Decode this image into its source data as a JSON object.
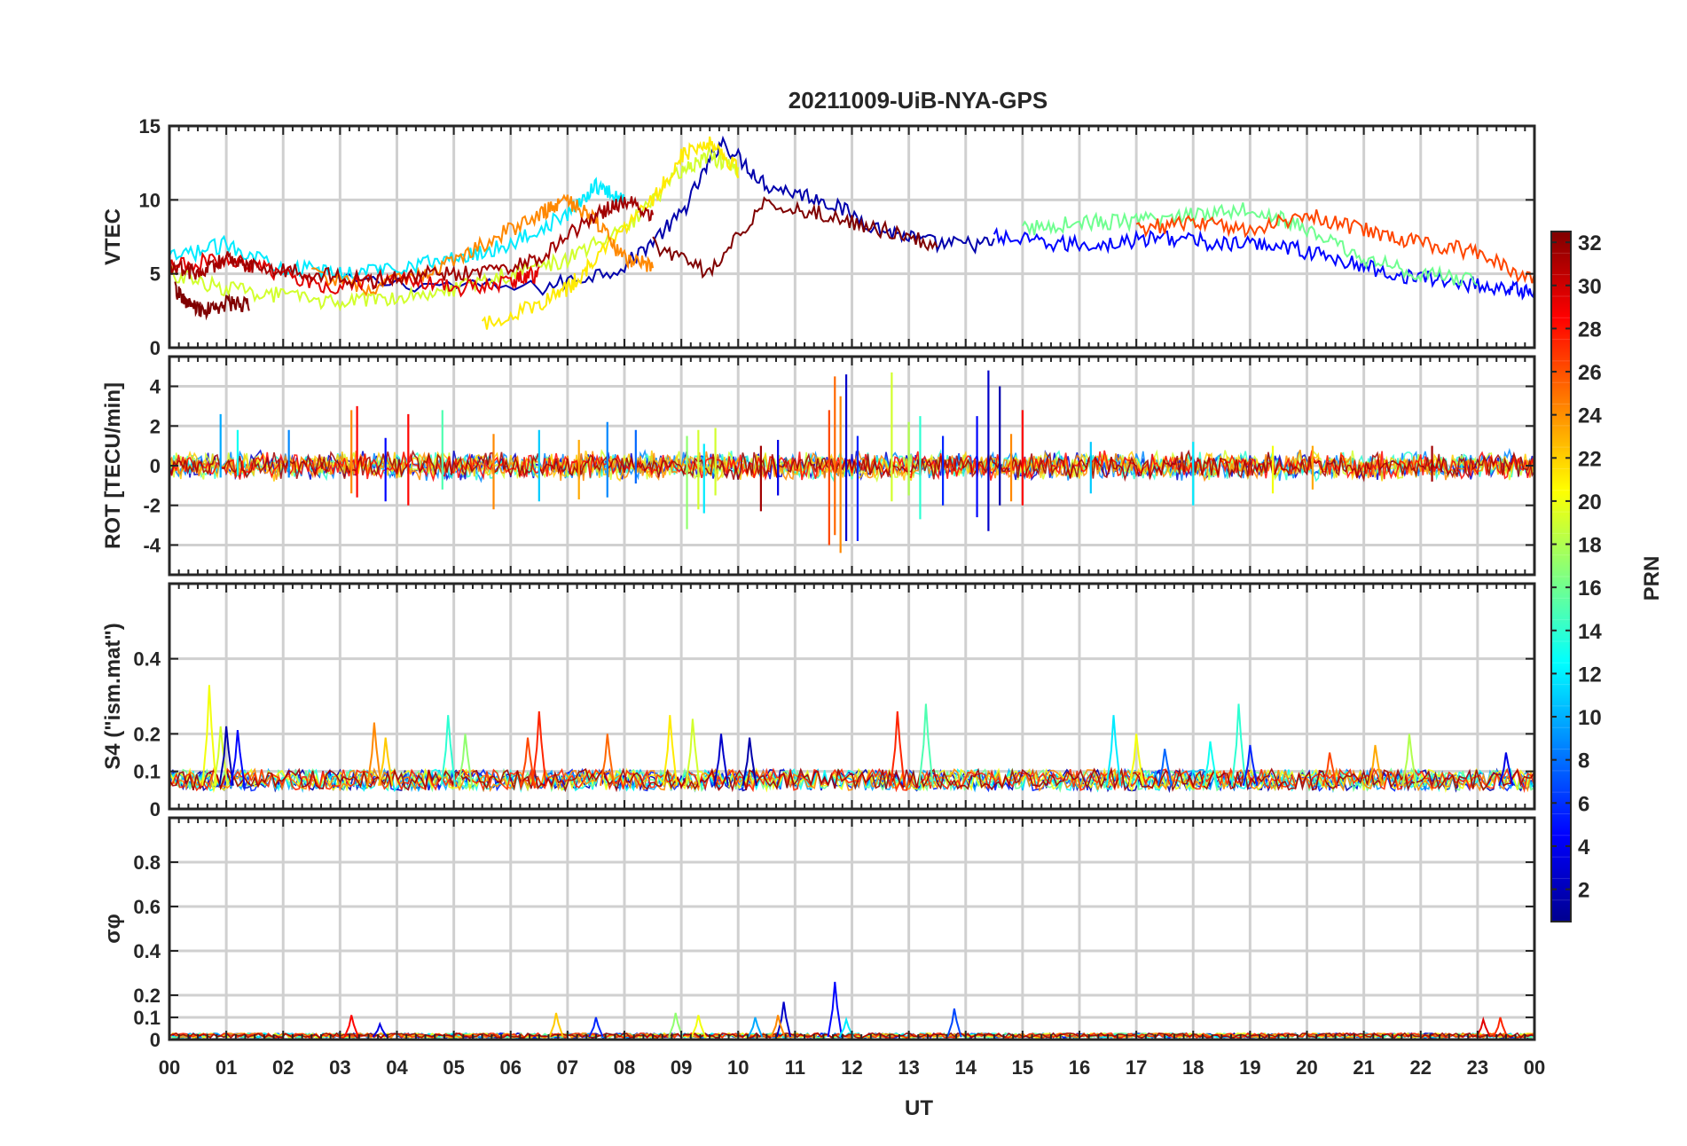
{
  "title": "20211009-UiB-NYA-GPS",
  "xlabel": "UT",
  "x_tick_labels": [
    "00",
    "01",
    "02",
    "03",
    "04",
    "05",
    "06",
    "07",
    "08",
    "09",
    "10",
    "11",
    "12",
    "13",
    "14",
    "15",
    "16",
    "17",
    "18",
    "19",
    "20",
    "21",
    "22",
    "23",
    "00"
  ],
  "colorbar": {
    "label": "PRN",
    "range": [
      1,
      32
    ],
    "tick_labels": [
      "2",
      "4",
      "6",
      "8",
      "10",
      "12",
      "14",
      "16",
      "18",
      "20",
      "22",
      "24",
      "26",
      "28",
      "30",
      "32"
    ],
    "colormap": "jet",
    "colors": [
      "#00008f",
      "#0000ff",
      "#0080ff",
      "#00ffff",
      "#80ff80",
      "#ffff00",
      "#ff8000",
      "#ff0000",
      "#800000"
    ]
  },
  "chart_data": [
    {
      "type": "line",
      "panel": "VTEC",
      "ylabel": "VTEC",
      "xlim": [
        0,
        24
      ],
      "ylim": [
        0,
        15
      ],
      "y_tick_labels": [
        "0",
        "5",
        "10",
        "15"
      ],
      "grid": true,
      "series": [
        {
          "prn": 2,
          "x": [
            3.0,
            6.5,
            8.0,
            9.0,
            9.7,
            10.5,
            11.5,
            12.5,
            13.5,
            14.5
          ],
          "values": [
            4.5,
            4.0,
            5.5,
            9.0,
            14.0,
            11.0,
            10.0,
            8.0,
            7.0,
            7.0
          ]
        },
        {
          "prn": 5,
          "x": [
            14.5,
            15.5,
            16.5,
            17.5,
            18.5,
            19.5,
            20.5,
            21.5,
            22.5,
            23.5,
            24.0
          ],
          "values": [
            7.5,
            7.0,
            7.0,
            7.5,
            7.0,
            7.0,
            6.0,
            5.0,
            4.5,
            4.0,
            3.8
          ]
        },
        {
          "prn": 12,
          "x": [
            0.0,
            1.0,
            2.0,
            3.0,
            4.0,
            5.0,
            6.0,
            7.0,
            7.5,
            8.0
          ],
          "values": [
            6.0,
            7.0,
            5.5,
            5.0,
            5.5,
            6.0,
            7.0,
            9.0,
            11.0,
            10.0
          ]
        },
        {
          "prn": 16,
          "x": [
            15.0,
            16.0,
            17.0,
            18.0,
            19.0,
            20.0,
            21.0,
            22.0,
            23.0
          ],
          "values": [
            8.0,
            8.5,
            8.5,
            9.0,
            9.5,
            8.0,
            6.0,
            5.0,
            4.5
          ]
        },
        {
          "prn": 19,
          "x": [
            0.0,
            1.0,
            2.0,
            3.0,
            4.0,
            5.0,
            6.0,
            7.0,
            8.0,
            9.0,
            9.5,
            10.0
          ],
          "values": [
            5.0,
            4.0,
            3.5,
            3.0,
            3.5,
            4.0,
            5.0,
            6.0,
            8.0,
            12.0,
            13.0,
            12.0
          ]
        },
        {
          "prn": 21,
          "x": [
            5.5,
            6.5,
            7.0,
            7.5,
            8.5,
            9.0,
            9.5,
            10.0
          ],
          "values": [
            1.5,
            3.0,
            4.0,
            6.0,
            10.0,
            13.0,
            14.0,
            12.0
          ]
        },
        {
          "prn": 24,
          "x": [
            2.5,
            3.5,
            4.5,
            5.5,
            6.5,
            7.0,
            7.5,
            8.0,
            8.5
          ],
          "values": [
            5.0,
            4.0,
            5.0,
            7.0,
            9.0,
            10.0,
            8.5,
            6.0,
            5.5
          ]
        },
        {
          "prn": 26,
          "x": [
            17.0,
            18.0,
            19.0,
            20.0,
            21.0,
            22.0,
            23.0,
            24.0
          ],
          "values": [
            8.0,
            8.5,
            8.0,
            9.0,
            8.0,
            7.0,
            6.5,
            4.5
          ]
        },
        {
          "prn": 29,
          "x": [
            0.0,
            1.0,
            2.0,
            3.0,
            4.0,
            5.0,
            6.0,
            6.5
          ],
          "values": [
            5.5,
            6.0,
            5.0,
            4.0,
            5.0,
            4.0,
            4.5,
            5.0
          ]
        },
        {
          "prn": 31,
          "x": [
            0.0,
            0.5,
            1.0,
            1.5,
            2.5,
            3.5,
            4.5,
            5.5,
            6.5,
            7.5,
            8.0,
            8.5
          ],
          "values": [
            5.5,
            5.0,
            6.0,
            5.5,
            5.0,
            4.5,
            5.0,
            5.0,
            6.0,
            9.0,
            10.0,
            9.0
          ]
        },
        {
          "prn": 32,
          "x": [
            0.1,
            0.3,
            0.6,
            1.0,
            1.4
          ],
          "values": [
            4.0,
            3.0,
            2.5,
            3.0,
            3.0
          ]
        },
        {
          "prn": 32,
          "x": [
            8.5,
            9.5,
            10.5,
            11.5,
            12.5,
            13.5
          ],
          "values": [
            7.0,
            5.0,
            10.0,
            9.0,
            8.0,
            7.0
          ]
        }
      ]
    },
    {
      "type": "line",
      "panel": "ROT",
      "ylabel": "ROT [TECU/min]",
      "xlim": [
        0,
        24
      ],
      "ylim": [
        -5.5,
        5.5
      ],
      "y_tick_labels": [
        "-4",
        "-2",
        "0",
        "2",
        "4"
      ],
      "y_ticks": [
        -4,
        -2,
        0,
        2,
        4
      ],
      "grid": true,
      "background_band": [
        -1.0,
        1.0
      ],
      "spikes": [
        {
          "x": 0.9,
          "min": -0.6,
          "max": 2.6,
          "prn": 10
        },
        {
          "x": 1.2,
          "min": -0.5,
          "max": 1.8,
          "prn": 13
        },
        {
          "x": 2.1,
          "min": -0.6,
          "max": 1.8,
          "prn": 9
        },
        {
          "x": 3.2,
          "min": -1.4,
          "max": 2.8,
          "prn": 24
        },
        {
          "x": 3.3,
          "min": -1.6,
          "max": 3.0,
          "prn": 28
        },
        {
          "x": 3.8,
          "min": -1.8,
          "max": 1.4,
          "prn": 5
        },
        {
          "x": 4.2,
          "min": -2.0,
          "max": 2.6,
          "prn": 28
        },
        {
          "x": 4.8,
          "min": -1.2,
          "max": 2.8,
          "prn": 15
        },
        {
          "x": 5.7,
          "min": -2.2,
          "max": 1.6,
          "prn": 24
        },
        {
          "x": 6.5,
          "min": -1.8,
          "max": 1.8,
          "prn": 11
        },
        {
          "x": 7.2,
          "min": -1.7,
          "max": 1.3,
          "prn": 23
        },
        {
          "x": 7.7,
          "min": -1.6,
          "max": 2.2,
          "prn": 9
        },
        {
          "x": 8.2,
          "min": -0.9,
          "max": 1.8,
          "prn": 8
        },
        {
          "x": 9.1,
          "min": -3.2,
          "max": 1.5,
          "prn": 17
        },
        {
          "x": 9.3,
          "min": -2.2,
          "max": 1.8,
          "prn": 19
        },
        {
          "x": 9.4,
          "min": -2.4,
          "max": 1.1,
          "prn": 12
        },
        {
          "x": 9.6,
          "min": -1.5,
          "max": 1.9,
          "prn": 19
        },
        {
          "x": 10.4,
          "min": -2.3,
          "max": 1.0,
          "prn": 31
        },
        {
          "x": 10.7,
          "min": -1.5,
          "max": 1.3,
          "prn": 4
        },
        {
          "x": 11.6,
          "min": -4.0,
          "max": 2.8,
          "prn": 26
        },
        {
          "x": 11.7,
          "min": -3.5,
          "max": 4.5,
          "prn": 25
        },
        {
          "x": 11.8,
          "min": -4.4,
          "max": 3.5,
          "prn": 24
        },
        {
          "x": 11.9,
          "min": -3.8,
          "max": 4.6,
          "prn": 3
        },
        {
          "x": 12.1,
          "min": -3.8,
          "max": 1.5,
          "prn": 6
        },
        {
          "x": 12.7,
          "min": -1.8,
          "max": 4.7,
          "prn": 19
        },
        {
          "x": 13.0,
          "min": -1.5,
          "max": 2.2,
          "prn": 18
        },
        {
          "x": 13.2,
          "min": -2.7,
          "max": 2.5,
          "prn": 14
        },
        {
          "x": 13.6,
          "min": -2.0,
          "max": 1.5,
          "prn": 6
        },
        {
          "x": 14.2,
          "min": -2.6,
          "max": 2.5,
          "prn": 5
        },
        {
          "x": 14.4,
          "min": -3.3,
          "max": 4.8,
          "prn": 3
        },
        {
          "x": 14.6,
          "min": -2.0,
          "max": 4.0,
          "prn": 2
        },
        {
          "x": 14.8,
          "min": -1.8,
          "max": 1.6,
          "prn": 24
        },
        {
          "x": 15.0,
          "min": -2.0,
          "max": 2.8,
          "prn": 28
        },
        {
          "x": 16.2,
          "min": -1.4,
          "max": 1.2,
          "prn": 11
        },
        {
          "x": 18.0,
          "min": -2.0,
          "max": 1.2,
          "prn": 12
        },
        {
          "x": 19.4,
          "min": -1.4,
          "max": 1.0,
          "prn": 20
        },
        {
          "x": 20.1,
          "min": -1.2,
          "max": 1.0,
          "prn": 23
        },
        {
          "x": 22.2,
          "min": -0.8,
          "max": 1.0,
          "prn": 31
        }
      ]
    },
    {
      "type": "line",
      "panel": "S4",
      "ylabel": "S4 (\"ism.mat\")",
      "xlim": [
        0,
        24
      ],
      "ylim": [
        0,
        0.6
      ],
      "y_tick_labels": [
        "0",
        "0.1",
        "0.2",
        "0.4"
      ],
      "y_ticks": [
        0,
        0.1,
        0.2,
        0.4
      ],
      "grid": true,
      "baseline": [
        0.03,
        0.11
      ],
      "spikes": [
        {
          "x": 0.7,
          "value": 0.33,
          "prn": 20
        },
        {
          "x": 0.9,
          "value": 0.22,
          "prn": 19
        },
        {
          "x": 1.0,
          "value": 0.22,
          "prn": 2
        },
        {
          "x": 1.2,
          "value": 0.21,
          "prn": 5
        },
        {
          "x": 3.6,
          "value": 0.23,
          "prn": 24
        },
        {
          "x": 3.8,
          "value": 0.19,
          "prn": 22
        },
        {
          "x": 4.9,
          "value": 0.25,
          "prn": 14
        },
        {
          "x": 5.2,
          "value": 0.2,
          "prn": 17
        },
        {
          "x": 6.5,
          "value": 0.26,
          "prn": 27
        },
        {
          "x": 6.3,
          "value": 0.19,
          "prn": 26
        },
        {
          "x": 7.7,
          "value": 0.2,
          "prn": 25
        },
        {
          "x": 8.8,
          "value": 0.25,
          "prn": 21
        },
        {
          "x": 9.2,
          "value": 0.24,
          "prn": 19
        },
        {
          "x": 9.7,
          "value": 0.2,
          "prn": 3
        },
        {
          "x": 10.2,
          "value": 0.19,
          "prn": 2
        },
        {
          "x": 12.8,
          "value": 0.26,
          "prn": 27
        },
        {
          "x": 13.3,
          "value": 0.28,
          "prn": 15
        },
        {
          "x": 16.6,
          "value": 0.25,
          "prn": 12
        },
        {
          "x": 17.0,
          "value": 0.2,
          "prn": 20
        },
        {
          "x": 17.5,
          "value": 0.16,
          "prn": 8
        },
        {
          "x": 18.3,
          "value": 0.18,
          "prn": 13
        },
        {
          "x": 18.8,
          "value": 0.28,
          "prn": 14
        },
        {
          "x": 19.0,
          "value": 0.17,
          "prn": 6
        },
        {
          "x": 20.4,
          "value": 0.15,
          "prn": 26
        },
        {
          "x": 21.2,
          "value": 0.17,
          "prn": 23
        },
        {
          "x": 21.8,
          "value": 0.2,
          "prn": 18
        },
        {
          "x": 23.5,
          "value": 0.15,
          "prn": 4
        }
      ]
    },
    {
      "type": "line",
      "panel": "sigma_phi",
      "ylabel": "σφ",
      "xlim": [
        0,
        24
      ],
      "ylim": [
        0,
        1.0
      ],
      "y_tick_labels": [
        "0",
        "0.1",
        "0.2",
        "0.4",
        "0.6",
        "0.8"
      ],
      "y_ticks": [
        0,
        0.1,
        0.2,
        0.4,
        0.6,
        0.8
      ],
      "grid": true,
      "baseline": [
        0.0,
        0.03
      ],
      "spikes": [
        {
          "x": 3.2,
          "value": 0.11,
          "prn": 28
        },
        {
          "x": 3.7,
          "value": 0.07,
          "prn": 4
        },
        {
          "x": 6.8,
          "value": 0.12,
          "prn": 22
        },
        {
          "x": 7.5,
          "value": 0.1,
          "prn": 6
        },
        {
          "x": 8.9,
          "value": 0.12,
          "prn": 17
        },
        {
          "x": 9.3,
          "value": 0.11,
          "prn": 20
        },
        {
          "x": 10.3,
          "value": 0.1,
          "prn": 10
        },
        {
          "x": 10.8,
          "value": 0.17,
          "prn": 3
        },
        {
          "x": 10.7,
          "value": 0.11,
          "prn": 24
        },
        {
          "x": 11.7,
          "value": 0.26,
          "prn": 5
        },
        {
          "x": 11.9,
          "value": 0.09,
          "prn": 12
        },
        {
          "x": 13.8,
          "value": 0.14,
          "prn": 7
        },
        {
          "x": 23.1,
          "value": 0.09,
          "prn": 29
        },
        {
          "x": 23.4,
          "value": 0.1,
          "prn": 27
        }
      ]
    }
  ]
}
